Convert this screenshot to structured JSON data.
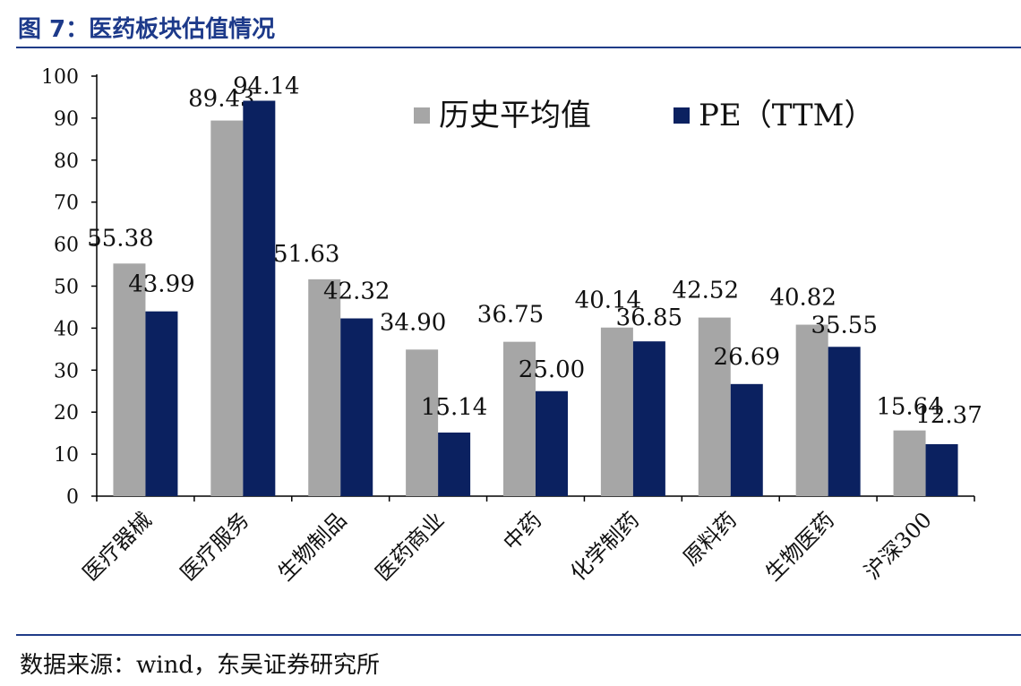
{
  "title": "图 7：医药板块估值情况",
  "source": "数据来源：wind，东吴证券研究所",
  "colors": {
    "hist": "#a6a6a6",
    "pe": "#0b2160",
    "axis": "#000000",
    "title": "#1d3a8a"
  },
  "chart_data": {
    "type": "bar",
    "categories": [
      "医疗器械",
      "医疗服务",
      "生物制品",
      "医药商业",
      "中药",
      "化学制药",
      "原料药",
      "生物医药",
      "沪深300"
    ],
    "series": [
      {
        "name": "历史平均值",
        "values": [
          55.38,
          89.43,
          51.63,
          34.9,
          36.75,
          40.14,
          42.52,
          40.82,
          15.64
        ],
        "labels": [
          "55.38",
          "89.43",
          "51.63",
          "34.90",
          "36.75",
          "40.14",
          "42.52",
          "40.82",
          "15.64"
        ]
      },
      {
        "name": "PE（TTM）",
        "values": [
          43.99,
          94.14,
          42.32,
          15.14,
          25.0,
          36.85,
          26.69,
          35.55,
          12.37
        ],
        "labels": [
          "43.99",
          "94.14",
          "42.32",
          "15.14",
          "25.00",
          "36.85",
          "26.69",
          "35.55",
          "12.37"
        ]
      }
    ],
    "yticks": [
      "0",
      "10",
      "20",
      "30",
      "40",
      "50",
      "60",
      "70",
      "80",
      "90",
      "100"
    ],
    "ylim": [
      0,
      100
    ],
    "legend": "top-right",
    "grid": false
  }
}
